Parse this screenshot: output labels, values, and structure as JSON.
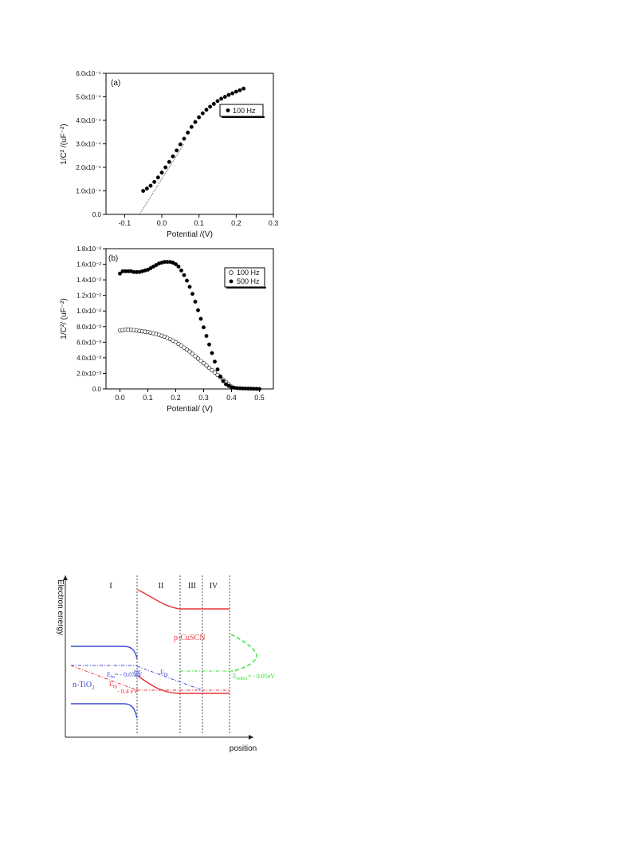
{
  "chart_data": [
    {
      "type": "scatter",
      "panel_label": "(a)",
      "xlabel": "Potential /(V)",
      "ylabel": "1/C² /(uF⁻²)",
      "xlim": [
        -0.15,
        0.3
      ],
      "ylim": [
        0,
        0.0006
      ],
      "xticks": [
        -0.1,
        0.0,
        0.1,
        0.2,
        0.3
      ],
      "xtick_labels": [
        "-0.1",
        "0.0",
        "0.1",
        "0.2",
        "0.3"
      ],
      "yticks": [
        0,
        0.0001,
        0.0002,
        0.0003,
        0.0004,
        0.0005,
        0.0006
      ],
      "ytick_labels": [
        "0.0",
        "1.0x10⁻⁴",
        "2.0x10⁻⁴",
        "3.0x10⁻⁴",
        "4.0x10⁻⁴",
        "5.0x10⁻⁴",
        "6.0x10⁻⁴"
      ],
      "legend_position": "upper-right",
      "series": [
        {
          "name": "100 Hz",
          "marker": "filled-circle",
          "x": [
            -0.05,
            -0.04,
            -0.03,
            -0.02,
            -0.01,
            0.0,
            0.01,
            0.02,
            0.03,
            0.04,
            0.05,
            0.06,
            0.07,
            0.08,
            0.09,
            0.1,
            0.11,
            0.12,
            0.13,
            0.14,
            0.15,
            0.16,
            0.17,
            0.18,
            0.19,
            0.2,
            0.21,
            0.22
          ],
          "y": [
            0.0001,
            0.00011,
            0.000122,
            0.000138,
            0.000157,
            0.000178,
            0.0002,
            0.000223,
            0.000247,
            0.000272,
            0.000298,
            0.000322,
            0.000348,
            0.000372,
            0.000393,
            0.000413,
            0.00043,
            0.000445,
            0.000458,
            0.00047,
            0.000482,
            0.000492,
            0.0005,
            0.000508,
            0.000515,
            0.000522,
            0.000528,
            0.000535
          ]
        }
      ],
      "fit_line": {
        "x": [
          -0.06,
          0.06
        ],
        "y": [
          0,
          0.0003
        ]
      }
    },
    {
      "type": "scatter",
      "panel_label": "(b)",
      "xlabel": "Potential/ (V)",
      "ylabel": "1/C²/ (uF⁻²)",
      "xlim": [
        -0.05,
        0.55
      ],
      "ylim": [
        0,
        0.018
      ],
      "xticks": [
        0.0,
        0.1,
        0.2,
        0.3,
        0.4,
        0.5
      ],
      "xtick_labels": [
        "0.0",
        "0.1",
        "0.2",
        "0.3",
        "0.4",
        "0.5"
      ],
      "yticks": [
        0,
        0.002,
        0.004,
        0.006,
        0.008,
        0.01,
        0.012,
        0.014,
        0.016,
        0.018
      ],
      "ytick_labels": [
        "0.0",
        "2.0x10⁻³",
        "4.0x10⁻³",
        "6.0x10⁻³",
        "8.0x10⁻³",
        "1.0x10⁻²",
        "1.2x10⁻²",
        "1.4x10⁻²",
        "1.6x10⁻²",
        "1.8x10⁻²"
      ],
      "legend_position": "upper-right",
      "series": [
        {
          "name": "100 Hz",
          "marker": "open-circle",
          "x": [
            0.0,
            0.01,
            0.02,
            0.03,
            0.04,
            0.05,
            0.06,
            0.07,
            0.08,
            0.09,
            0.1,
            0.11,
            0.12,
            0.13,
            0.14,
            0.15,
            0.16,
            0.17,
            0.18,
            0.19,
            0.2,
            0.21,
            0.22,
            0.23,
            0.24,
            0.25,
            0.26,
            0.27,
            0.28,
            0.29,
            0.3,
            0.31,
            0.32,
            0.33,
            0.34,
            0.35,
            0.36,
            0.37,
            0.38,
            0.39,
            0.4
          ],
          "y": [
            0.0075,
            0.00755,
            0.0076,
            0.0076,
            0.00758,
            0.00755,
            0.0075,
            0.00745,
            0.0074,
            0.00735,
            0.0073,
            0.00722,
            0.00715,
            0.00705,
            0.00695,
            0.00683,
            0.0067,
            0.00655,
            0.0064,
            0.0062,
            0.006,
            0.00578,
            0.00555,
            0.0053,
            0.00505,
            0.0048,
            0.0045,
            0.0042,
            0.0039,
            0.0036,
            0.0033,
            0.003,
            0.0027,
            0.0024,
            0.0021,
            0.0018,
            0.0015,
            0.0012,
            0.0009,
            0.0006,
            0.0003
          ]
        },
        {
          "name": "500 Hz",
          "marker": "filled-circle",
          "x": [
            0.0,
            0.01,
            0.02,
            0.03,
            0.04,
            0.05,
            0.06,
            0.07,
            0.08,
            0.09,
            0.1,
            0.11,
            0.12,
            0.13,
            0.14,
            0.15,
            0.16,
            0.17,
            0.18,
            0.19,
            0.2,
            0.21,
            0.22,
            0.23,
            0.24,
            0.25,
            0.26,
            0.27,
            0.28,
            0.29,
            0.3,
            0.31,
            0.32,
            0.33,
            0.34,
            0.35,
            0.36,
            0.37,
            0.38,
            0.39,
            0.4,
            0.41,
            0.42,
            0.43,
            0.44,
            0.45,
            0.46,
            0.47,
            0.48,
            0.49,
            0.5
          ],
          "y": [
            0.0148,
            0.0151,
            0.0151,
            0.0151,
            0.0151,
            0.015,
            0.015,
            0.015,
            0.0151,
            0.0152,
            0.0153,
            0.0155,
            0.0157,
            0.0159,
            0.0161,
            0.0162,
            0.0163,
            0.0163,
            0.0163,
            0.0162,
            0.016,
            0.0157,
            0.0152,
            0.0146,
            0.0139,
            0.0131,
            0.0122,
            0.0112,
            0.0101,
            0.009,
            0.0079,
            0.0068,
            0.0057,
            0.0046,
            0.0035,
            0.0025,
            0.0016,
            0.001,
            0.0006,
            0.0004,
            0.0002,
            0.00015,
            0.0001,
            8e-05,
            6e-05,
            5e-05,
            4e-05,
            3e-05,
            2e-05,
            1e-05,
            0.0
          ]
        }
      ]
    }
  ],
  "diagram": {
    "y_axis_label": "Electron energy",
    "x_axis_label": "position",
    "regions": [
      "I",
      "II",
      "III",
      "IV"
    ],
    "labels": {
      "p_cuscn": "p-CuSCN",
      "n_tio2_main": "n-TiO",
      "n_tio2_sub": "2",
      "efn_main": "E",
      "efn_sub": "fn",
      "efn_value": "= - 0.07eV",
      "efp_main": "E",
      "efp_sub": "fp",
      "efp_value": "- 0.4 eV",
      "efn2_main": "E",
      "efn2_sub": "fn",
      "eredox_main": "E",
      "eredox_sub": "redox",
      "eredox_value": "= - 0.05eV"
    },
    "colors": {
      "tio2": "#3b4bd6",
      "cuscn": "#e8343a",
      "redox": "#2ee02e",
      "axis": "#222222"
    }
  }
}
